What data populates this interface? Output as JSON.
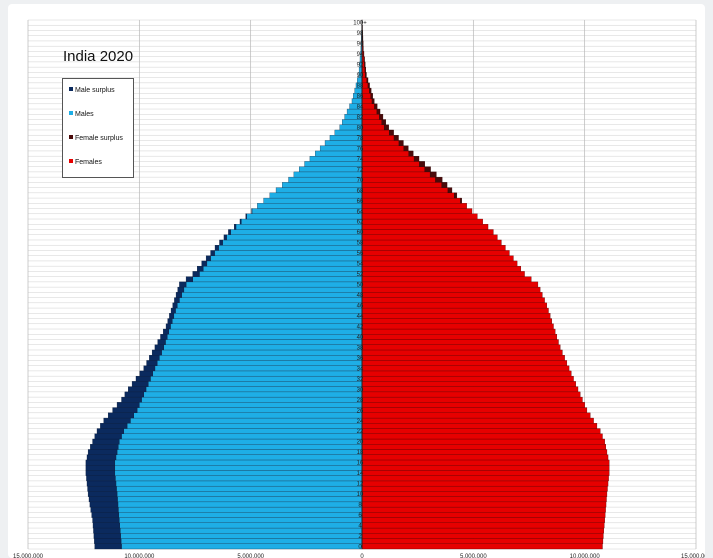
{
  "chart_data": {
    "type": "bar",
    "orientation": "horizontal",
    "title": "India 2020",
    "age_labels": [
      "0",
      "2",
      "4",
      "6",
      "8",
      "10",
      "12",
      "14",
      "16",
      "18",
      "20",
      "22",
      "24",
      "26",
      "28",
      "30",
      "32",
      "34",
      "36",
      "38",
      "40",
      "42",
      "44",
      "46",
      "48",
      "50",
      "52",
      "54",
      "56",
      "58",
      "60",
      "62",
      "64",
      "66",
      "68",
      "70",
      "72",
      "74",
      "76",
      "78",
      "80",
      "82",
      "84",
      "86",
      "88",
      "90",
      "92",
      "94",
      "96",
      "98",
      "100+"
    ],
    "x_tick_labels": [
      "15,000,000",
      "10,000,000",
      "5,000,000",
      "0",
      "5,000,000",
      "10,000,000",
      "15,000,000"
    ],
    "xlim": [
      -15000000,
      15000000
    ],
    "legend": [
      {
        "label": "Male surplus",
        "color": "#0b2a5e"
      },
      {
        "label": "Males",
        "color": "#1eaee6"
      },
      {
        "label": "Female surplus",
        "color": "#4a0a0a"
      },
      {
        "label": "Females",
        "color": "#e60000"
      }
    ],
    "series": [
      {
        "name": "Males",
        "values_at": {
          "ages": [
            0,
            5,
            10,
            14,
            16,
            18,
            20,
            22,
            24,
            26,
            28,
            30,
            34,
            38,
            42,
            46,
            50,
            52,
            55,
            60,
            65,
            70,
            75,
            80,
            85,
            90,
            95,
            100
          ],
          "population": [
            12000000,
            12100000,
            12300000,
            12400000,
            12400000,
            12300000,
            12100000,
            11900000,
            11600000,
            11200000,
            10800000,
            10500000,
            9800000,
            9300000,
            8800000,
            8500000,
            8200000,
            7600000,
            7000000,
            6000000,
            4700000,
            3300000,
            2100000,
            1000000,
            450000,
            150000,
            50000,
            10000
          ]
        }
      },
      {
        "name": "Females",
        "values_at": {
          "ages": [
            0,
            5,
            10,
            14,
            16,
            18,
            20,
            22,
            24,
            26,
            28,
            30,
            34,
            38,
            42,
            46,
            50,
            52,
            55,
            60,
            65,
            70,
            75,
            80,
            85,
            90,
            95,
            100
          ],
          "population": [
            10800000,
            10900000,
            11000000,
            11100000,
            11100000,
            11000000,
            10900000,
            10700000,
            10400000,
            10100000,
            9900000,
            9700000,
            9300000,
            8900000,
            8600000,
            8300000,
            7900000,
            7300000,
            6800000,
            5900000,
            4700000,
            3600000,
            2300000,
            1200000,
            550000,
            200000,
            60000,
            15000
          ]
        }
      }
    ]
  }
}
